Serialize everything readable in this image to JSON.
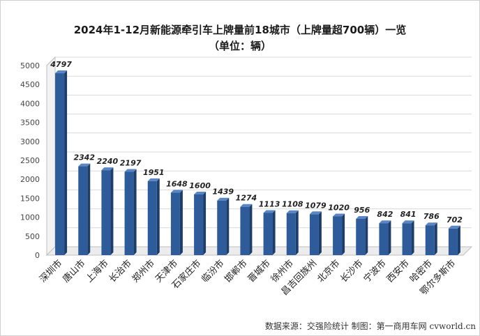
{
  "chart_data": {
    "type": "bar",
    "title_line1": "2024年1-12月新能源牵引车上牌量前18城市（上牌量超700辆）一览",
    "title_line2": "（单位：辆）",
    "categories": [
      "深圳市",
      "唐山市",
      "上海市",
      "长治市",
      "郑州市",
      "天津市",
      "石家庄市",
      "临汾市",
      "邯郸市",
      "晋城市",
      "徐州市",
      "昌吉回族州",
      "北京市",
      "长沙市",
      "宁波市",
      "西安市",
      "哈密市",
      "鄂尔多斯市"
    ],
    "values": [
      4797,
      2342,
      2240,
      2197,
      1951,
      1648,
      1600,
      1439,
      1274,
      1113,
      1108,
      1079,
      1020,
      956,
      842,
      841,
      786,
      702
    ],
    "ylim": [
      0,
      5000
    ],
    "yticks": [
      0,
      500,
      1000,
      1500,
      2000,
      2500,
      3000,
      3500,
      4000,
      4500,
      5000
    ],
    "grid": true,
    "colors": {
      "bar_front": "#2e5c9a",
      "bar_side": "#1d3d6b",
      "bar_top": "#5b86c4"
    }
  },
  "source_text": "数据来源：交强险统计  制图：第一商用车网 cvworld.cn"
}
